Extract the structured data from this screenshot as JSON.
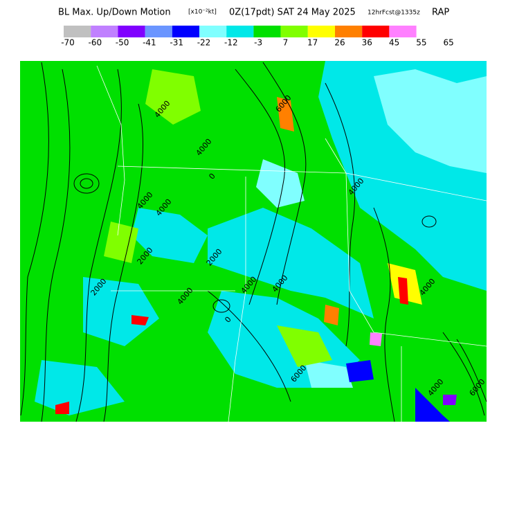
{
  "header": {
    "title": "BL Max. Up/Down Motion",
    "units": "[x10⁻²kt]",
    "valid": "0Z(17pdt) SAT 24 May 2025",
    "forecast": "12hrFcst@1335z",
    "model": "RAP"
  },
  "legend": {
    "colors": [
      "#c0c0c0",
      "#c080ff",
      "#8000ff",
      "#6a95ff",
      "#0000ff",
      "#80ffff",
      "#00e8e8",
      "#00e000",
      "#80ff00",
      "#ffff00",
      "#ff8000",
      "#ff0000",
      "#ff80ff"
    ],
    "labels": [
      "-70",
      "-60",
      "-50",
      "-41",
      "-31",
      "-22",
      "-12",
      "-3",
      "7",
      "17",
      "26",
      "36",
      "45",
      "55",
      "65"
    ]
  },
  "map": {
    "contour_labels": [
      "4000",
      "4000",
      "2000",
      "4000",
      "4000",
      "2000",
      "4000",
      "4000",
      "4000",
      "2000",
      "4000",
      "6000",
      "6000",
      "4000",
      "4000",
      "6000",
      "0",
      "0"
    ]
  }
}
